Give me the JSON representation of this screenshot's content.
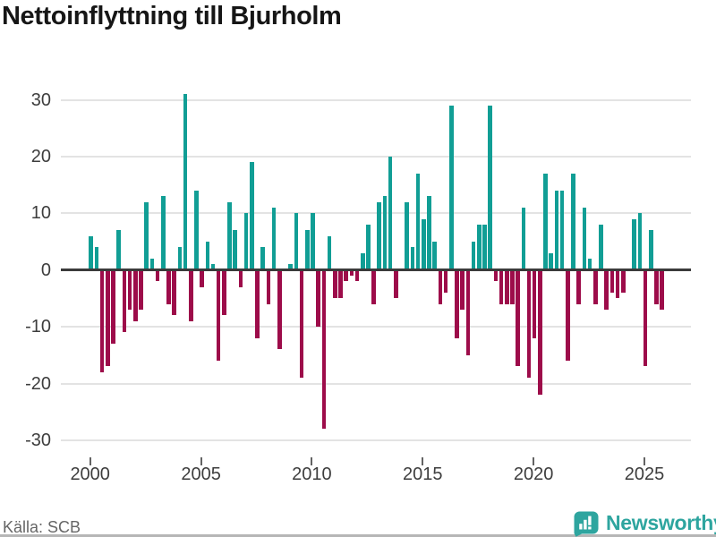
{
  "title": "Nettoinflyttning till Bjurholm",
  "source": "Källa: SCB",
  "brand": {
    "name": "Newsworthy",
    "color": "#2ea59f"
  },
  "chart_data": {
    "type": "bar",
    "title": "Nettoinflyttning till Bjurholm",
    "frequency": "quarterly",
    "start_period": "2000Q1",
    "end_period": "2025Q4",
    "x_tick_labels": [
      "2000",
      "2005",
      "2010",
      "2015",
      "2020",
      "2025"
    ],
    "y_tick_labels": [
      "30",
      "20",
      "10",
      "0",
      "-10",
      "-20",
      "-30"
    ],
    "y_tick_values": [
      30,
      20,
      10,
      0,
      -10,
      -20,
      -30
    ],
    "ylim": [
      -33,
      33
    ],
    "grid": "horizontal",
    "legend": "none",
    "positive_color": "#119e95",
    "negative_color": "#9d0c4a",
    "grid_color": "#e3e3e3",
    "axis_text_color": "#3d3d3d",
    "values": [
      6,
      4,
      -18,
      -17,
      -13,
      7,
      -11,
      -7,
      -9,
      -7,
      12,
      2,
      -2,
      13,
      -6,
      -8,
      4,
      31,
      -9,
      14,
      -3,
      5,
      1,
      -16,
      -8,
      12,
      7,
      -3,
      10,
      19,
      -12,
      4,
      -6,
      11,
      -14,
      0,
      1,
      10,
      -19,
      7,
      10,
      -10,
      -28,
      6,
      -5,
      -5,
      -2,
      -1,
      -2,
      3,
      8,
      -6,
      12,
      13,
      20,
      -5,
      0,
      12,
      4,
      17,
      9,
      13,
      5,
      -6,
      -4,
      29,
      -12,
      -7,
      -15,
      5,
      8,
      8,
      29,
      -2,
      -6,
      -6,
      -6,
      -17,
      11,
      -19,
      -12,
      -22,
      17,
      3,
      14,
      14,
      -16,
      17,
      -6,
      11,
      2,
      -6,
      8,
      -7,
      -4,
      -5,
      -4,
      0,
      9,
      10,
      -17,
      7,
      -6,
      -7
    ]
  }
}
